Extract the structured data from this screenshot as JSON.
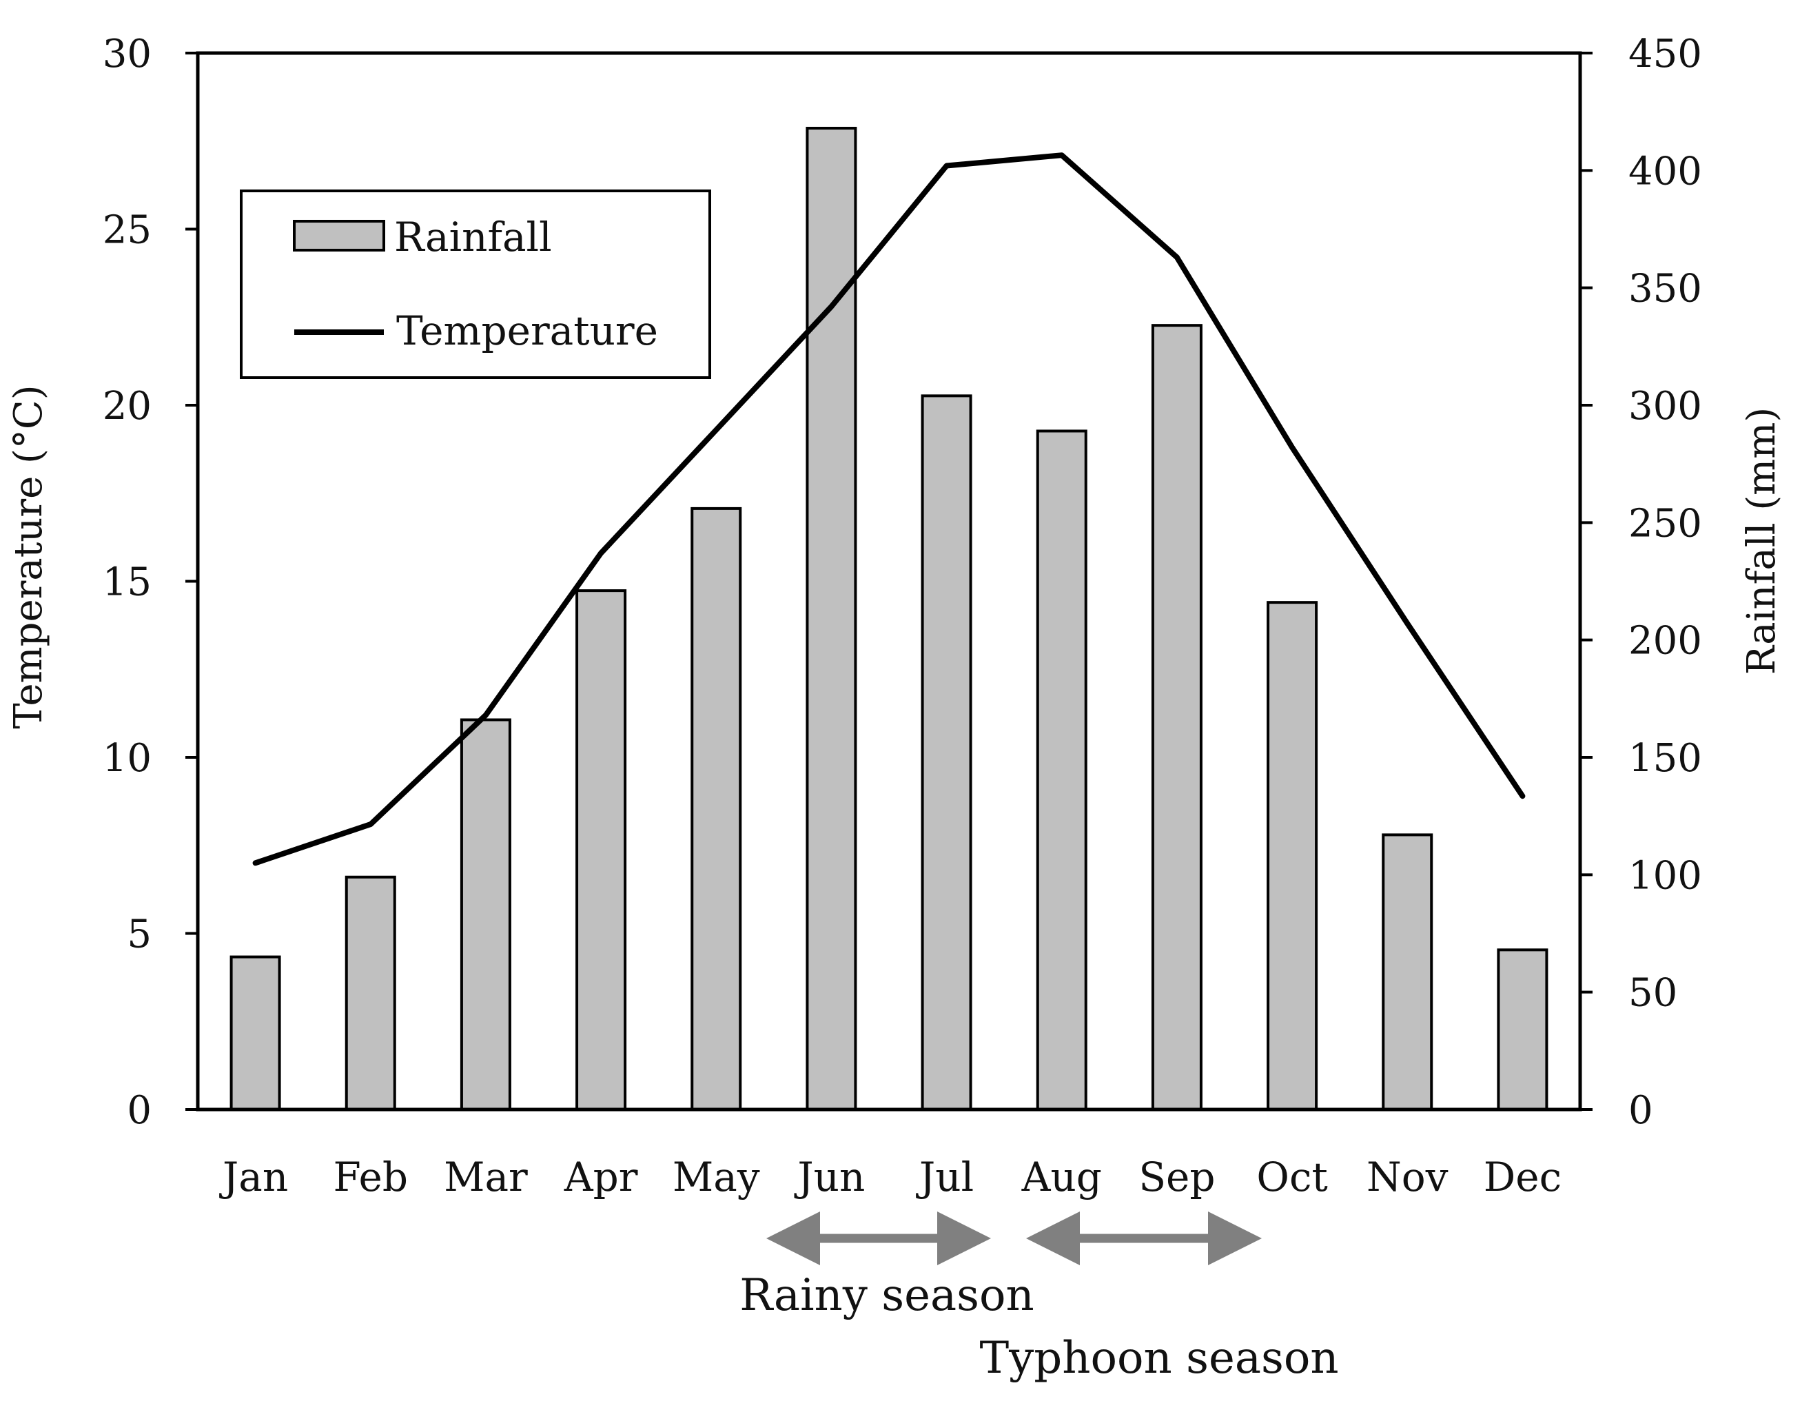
{
  "chart_data": {
    "type": "bar",
    "title": "",
    "categories": [
      "Jan",
      "Feb",
      "Mar",
      "Apr",
      "May",
      "Jun",
      "Jul",
      "Aug",
      "Sep",
      "Oct",
      "Nov",
      "Dec"
    ],
    "series": [
      {
        "name": "Rainfall",
        "type": "bar",
        "axis": "right",
        "values": [
          65,
          99,
          166,
          221,
          256,
          418,
          304,
          289,
          334,
          216,
          117,
          68
        ],
        "color": "#c0c0c0"
      },
      {
        "name": "Temperature",
        "type": "line",
        "axis": "left",
        "values": [
          7.0,
          8.1,
          11.2,
          15.8,
          19.3,
          22.8,
          26.8,
          27.1,
          24.2,
          18.8,
          13.8,
          8.9
        ],
        "color": "#000000"
      }
    ],
    "y_left": {
      "label": "Temperature (°C)",
      "min": 0,
      "max": 30,
      "ticks": [
        0,
        5,
        10,
        15,
        20,
        25,
        30
      ]
    },
    "y_right": {
      "label": "Rainfall (mm)",
      "min": 0,
      "max": 450,
      "ticks": [
        0,
        50,
        100,
        150,
        200,
        250,
        300,
        350,
        400,
        450
      ]
    },
    "xlabel": "",
    "grid": false,
    "legend": {
      "position": "top-left",
      "entries": [
        "Rainfall",
        "Temperature"
      ]
    },
    "annotations": [
      {
        "text": "Rainy season",
        "from": "Jun",
        "to": "Jul"
      },
      {
        "text": "Typhoon season",
        "from": "Aug",
        "to": "Oct"
      }
    ]
  }
}
